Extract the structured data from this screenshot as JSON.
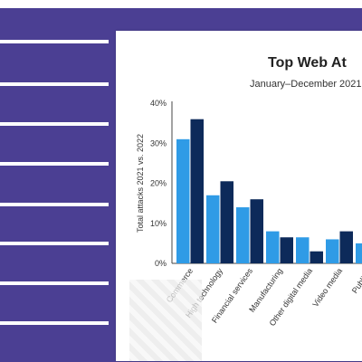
{
  "colors": {
    "sidebar_bg": "#4b3f93",
    "series_2021": "#2f9be6",
    "series_2022": "#0d2a5a"
  },
  "chart_data": {
    "type": "bar",
    "title": "Top Web At",
    "subtitle": "January–December 2021",
    "ylabel": "Total attacks 2021 vs. 2022",
    "ylim": [
      0,
      40
    ],
    "yticks": [
      "0%",
      "10%",
      "20%",
      "30%",
      "40%"
    ],
    "categories": [
      "Commerce",
      "High technology",
      "Financial services",
      "Manufacturing",
      "Other digital media",
      "Video media",
      "Public s"
    ],
    "series": [
      {
        "values": [
          31,
          17,
          14,
          8,
          6.5,
          6,
          5
        ]
      },
      {
        "values": [
          36,
          20.5,
          16,
          6.5,
          3,
          8,
          0
        ]
      }
    ],
    "grid": false,
    "legend": "none"
  }
}
